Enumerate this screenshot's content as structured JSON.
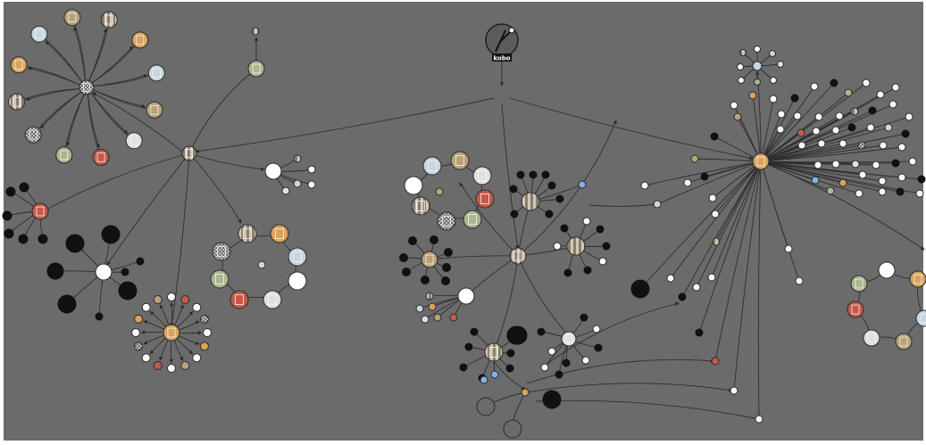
{
  "graph": {
    "background": "#6b6b6b",
    "frame": "#ffffff",
    "edge_color": "#2e2e2e",
    "root_label": "kobo"
  }
}
